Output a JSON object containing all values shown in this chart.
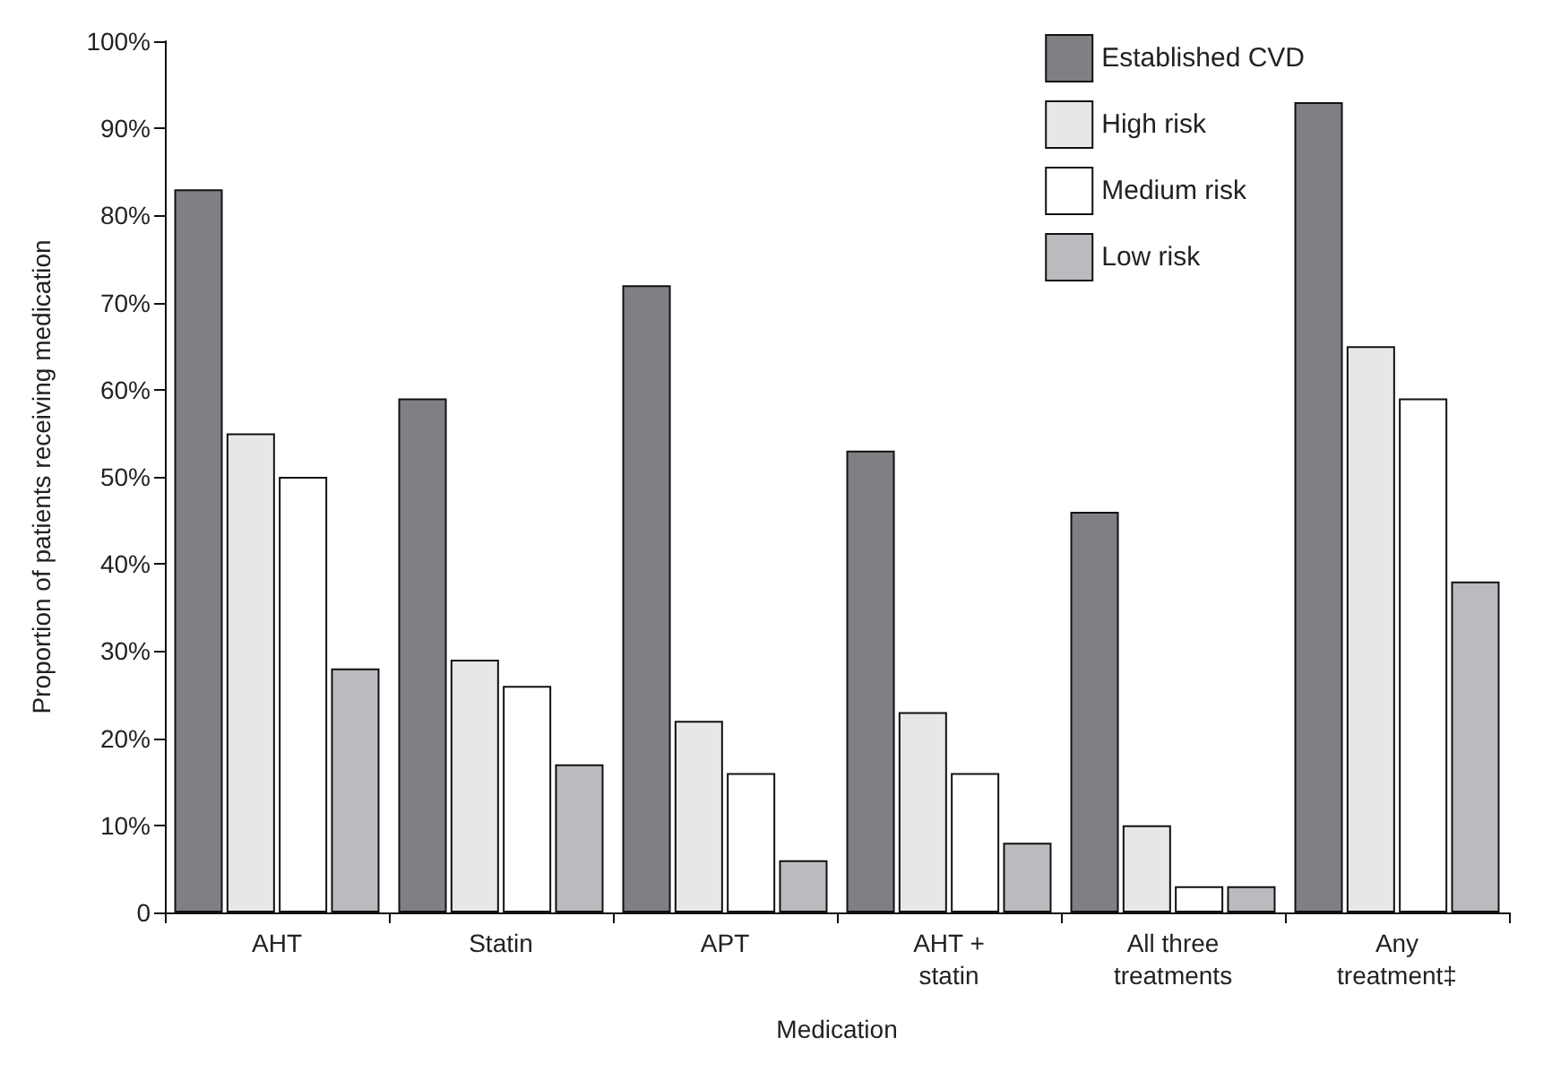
{
  "chart_data": {
    "type": "bar",
    "xlabel": "Medication",
    "ylabel": "Proportion of patients receiving medication",
    "categories": [
      "AHT",
      "Statin",
      "APT",
      "AHT +\nstatin",
      "All three\ntreatments",
      "Any\ntreatment‡"
    ],
    "series": [
      {
        "name": "Established CVD",
        "color": "#808084",
        "values": [
          83,
          59,
          72,
          53,
          46,
          93
        ]
      },
      {
        "name": "High risk",
        "color": "#e6e7e9",
        "values": [
          55,
          29,
          22,
          23,
          10,
          65
        ]
      },
      {
        "name": "Medium risk",
        "color": "#ffffff",
        "values": [
          50,
          26,
          16,
          16,
          3,
          59
        ]
      },
      {
        "name": "Low risk",
        "color": "#b9bbbe",
        "values": [
          28,
          17,
          6,
          8,
          3,
          38
        ]
      }
    ],
    "ylim": [
      0,
      100
    ],
    "yticks": [
      {
        "value": 0,
        "label": "0"
      },
      {
        "value": 10,
        "label": "10%"
      },
      {
        "value": 20,
        "label": "20%"
      },
      {
        "value": 30,
        "label": "30%"
      },
      {
        "value": 40,
        "label": "40%"
      },
      {
        "value": 50,
        "label": "50%"
      },
      {
        "value": 60,
        "label": "60%"
      },
      {
        "value": 70,
        "label": "70%"
      },
      {
        "value": 80,
        "label": "80%"
      },
      {
        "value": 90,
        "label": "90%"
      },
      {
        "value": 100,
        "label": "100%"
      }
    ],
    "grid": false,
    "legend": "top right"
  }
}
